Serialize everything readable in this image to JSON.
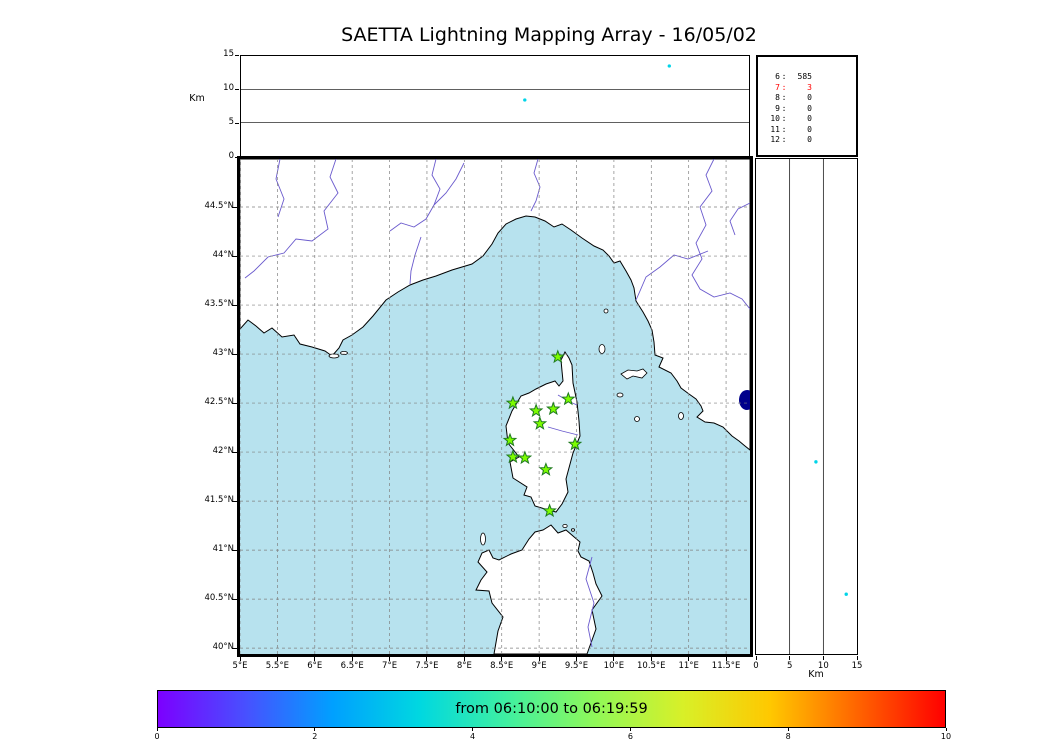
{
  "title": "SAETTA Lightning Mapping Array - 16/05/02",
  "colors": {
    "sea": "#b7e2ee",
    "land": "#ffffff",
    "coast": "#000000",
    "river": "#6a5acd",
    "grid": "#808080",
    "station_fill": "#7CFC00",
    "station_edge": "#1f7a1f",
    "source": "#00d4e8",
    "lake": "#00008b",
    "highlight": "#ff0000"
  },
  "chart_data": {
    "type": "scatter",
    "title": "SAETTA Lightning Mapping Array - 16/05/02",
    "layout_hint": "XLMA-style lightning mapping array figure: altitude-vs-longitude top panel, station-count box, plan-view map of Corsica region, altitude-vs-latitude right panel, time colorbar at bottom; grid on (dashed) in plan view",
    "panels": {
      "altitude_longitude": {
        "ylabel": "Km",
        "ylim": [
          0,
          15
        ],
        "yticks": [
          0,
          5,
          10,
          15
        ],
        "grid_alts_km": [
          5,
          10
        ],
        "sources": [
          {
            "lon": 10.75,
            "alt_km": 13.5
          },
          {
            "lon": 8.81,
            "alt_km": 8.4
          }
        ]
      },
      "station_count_box": {
        "rows": [
          {
            "stations": "6",
            "count": "585",
            "highlight": false
          },
          {
            "stations": "7",
            "count": "3",
            "highlight": true
          },
          {
            "stations": "8",
            "count": "0",
            "highlight": false
          },
          {
            "stations": "9",
            "count": "0",
            "highlight": false
          },
          {
            "stations": "10",
            "count": "0",
            "highlight": false
          },
          {
            "stations": "11",
            "count": "0",
            "highlight": false
          },
          {
            "stations": "12",
            "count": "0",
            "highlight": false
          }
        ]
      },
      "plan_view": {
        "lon_range": [
          5.0,
          11.82
        ],
        "lat_range": [
          39.94,
          44.99
        ],
        "lon_ticks": [
          {
            "value": 5,
            "label": "5°E"
          },
          {
            "value": 5.5,
            "label": "5.5°E"
          },
          {
            "value": 6,
            "label": "6°E"
          },
          {
            "value": 6.5,
            "label": "6.5°E"
          },
          {
            "value": 7,
            "label": "7°E"
          },
          {
            "value": 7.5,
            "label": "7.5°E"
          },
          {
            "value": 8,
            "label": "8°E"
          },
          {
            "value": 8.5,
            "label": "8.5°E"
          },
          {
            "value": 9,
            "label": "9°E"
          },
          {
            "value": 9.5,
            "label": "9.5°E"
          },
          {
            "value": 10,
            "label": "10°E"
          },
          {
            "value": 10.5,
            "label": "10.5°E"
          },
          {
            "value": 11,
            "label": "11°E"
          },
          {
            "value": 11.5,
            "label": "11.5°E"
          }
        ],
        "lat_ticks": [
          {
            "value": 40,
            "label": "40°N"
          },
          {
            "value": 40.5,
            "label": "40.5°N"
          },
          {
            "value": 41,
            "label": "41°N"
          },
          {
            "value": 41.5,
            "label": "41.5°N"
          },
          {
            "value": 42,
            "label": "42°N"
          },
          {
            "value": 42.5,
            "label": "42.5°N"
          },
          {
            "value": 43,
            "label": "43°N"
          },
          {
            "value": 43.5,
            "label": "43.5°N"
          },
          {
            "value": 44,
            "label": "44°N"
          },
          {
            "value": 44.5,
            "label": "44.5°N"
          }
        ],
        "stations": [
          {
            "lon": 9.25,
            "lat": 42.97
          },
          {
            "lon": 8.65,
            "lat": 42.5
          },
          {
            "lon": 8.96,
            "lat": 42.42
          },
          {
            "lon": 9.19,
            "lat": 42.44
          },
          {
            "lon": 9.39,
            "lat": 42.54
          },
          {
            "lon": 9.01,
            "lat": 42.29
          },
          {
            "lon": 8.61,
            "lat": 42.12
          },
          {
            "lon": 9.48,
            "lat": 42.08
          },
          {
            "lon": 8.65,
            "lat": 41.95
          },
          {
            "lon": 8.81,
            "lat": 41.94
          },
          {
            "lon": 9.09,
            "lat": 41.82
          },
          {
            "lon": 9.14,
            "lat": 41.4
          }
        ]
      },
      "altitude_latitude": {
        "xlabel": "Km",
        "xlim": [
          0,
          15
        ],
        "xticks": [
          0,
          5,
          10,
          15
        ],
        "grid_alts_km": [
          5,
          10
        ],
        "sources": [
          {
            "lat": 41.9,
            "alt_km": 8.9
          },
          {
            "lat": 40.55,
            "alt_km": 13.4
          }
        ]
      },
      "colorbar": {
        "label": "from 06:10:00 to 06:19:59",
        "range": [
          0,
          10
        ],
        "ticks": [
          0,
          2,
          4,
          6,
          8,
          10
        ],
        "gradient": [
          "#7c00ff",
          "#4850ff",
          "#00a0ff",
          "#00d8e0",
          "#40f0a0",
          "#90f858",
          "#d8f028",
          "#ffc800",
          "#ff6400",
          "#ff0000"
        ]
      }
    }
  }
}
